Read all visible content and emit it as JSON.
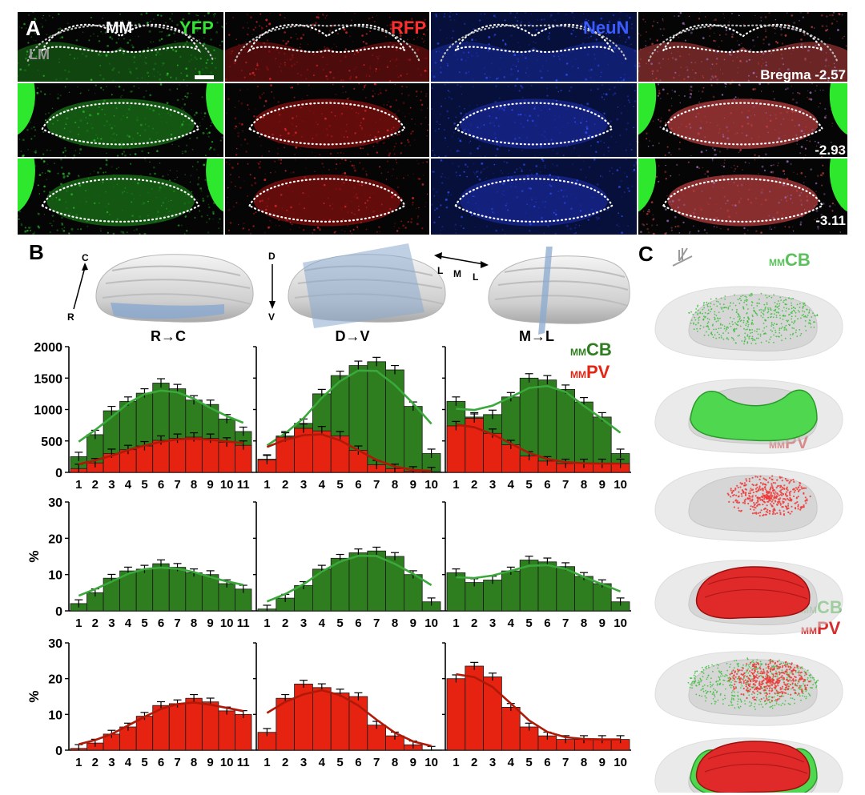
{
  "panel_a": {
    "letter": "A",
    "stain_labels": [
      "YFP",
      "RFP",
      "NeuN"
    ],
    "region_labels": {
      "mm": "MM",
      "lm": "LM"
    },
    "bregma": [
      "Bregma -2.57",
      "-2.93",
      "-3.11"
    ]
  },
  "panel_b": {
    "letter": "B",
    "orientation": {
      "rc": {
        "top": "C",
        "bottom": "R"
      },
      "dv": {
        "top": "D",
        "bottom": "V"
      },
      "ml": {
        "left": "L",
        "middle": "M",
        "right": "L"
      }
    },
    "column_titles": [
      "R→C",
      "D→V",
      "M→L"
    ],
    "legend": {
      "cb": {
        "prefix": "MM",
        "name": "CB",
        "color": "#2e7d1e"
      },
      "pv": {
        "prefix": "MM",
        "name": "PV",
        "color": "#e52310"
      }
    },
    "row_ylabels": [
      "",
      "%",
      "%"
    ]
  },
  "panel_c": {
    "letter": "C",
    "labels": {
      "cb": {
        "prefix": "MM",
        "name": "CB"
      },
      "pv": {
        "prefix": "MM",
        "name": "PV"
      },
      "both_cb": {
        "prefix": "MM",
        "name": "CB"
      },
      "both_pv": {
        "prefix": "MM",
        "name": "PV"
      }
    }
  },
  "chart_data": [
    {
      "type": "bar",
      "id": "counts-rc",
      "x": [
        "1",
        "2",
        "3",
        "4",
        "5",
        "6",
        "7",
        "8",
        "9",
        "10",
        "11"
      ],
      "ylim": [
        0,
        2000
      ],
      "yticks": [
        0,
        500,
        1000,
        1500,
        2000
      ],
      "series": [
        {
          "name": "CB",
          "values": [
            250,
            600,
            980,
            1130,
            1260,
            1420,
            1330,
            1150,
            1080,
            850,
            650
          ]
        },
        {
          "name": "PV",
          "values": [
            60,
            150,
            300,
            360,
            420,
            510,
            540,
            560,
            540,
            480,
            430
          ]
        }
      ]
    },
    {
      "type": "bar",
      "id": "counts-dv",
      "x": [
        "1",
        "2",
        "3",
        "4",
        "5",
        "6",
        "7",
        "8",
        "9",
        "10"
      ],
      "ylim": [
        0,
        2000
      ],
      "yticks": [
        0,
        500,
        1000,
        1500,
        2000
      ],
      "series": [
        {
          "name": "CB",
          "values": [
            210,
            580,
            780,
            1250,
            1540,
            1700,
            1760,
            1630,
            1050,
            300
          ]
        },
        {
          "name": "PV",
          "values": [
            200,
            560,
            700,
            660,
            580,
            350,
            120,
            60,
            20,
            10
          ]
        }
      ]
    },
    {
      "type": "bar",
      "id": "counts-ml",
      "x": [
        "1",
        "2",
        "3",
        "4",
        "5",
        "6",
        "7",
        "8",
        "9",
        "10"
      ],
      "ylim": [
        0,
        2000
      ],
      "yticks": [
        0,
        500,
        1000,
        1500,
        2000
      ],
      "series": [
        {
          "name": "CB",
          "values": [
            1130,
            880,
            920,
            1200,
            1500,
            1470,
            1320,
            1120,
            880,
            300
          ]
        },
        {
          "name": "PV",
          "values": [
            740,
            860,
            620,
            440,
            260,
            180,
            140,
            140,
            140,
            140
          ]
        }
      ]
    },
    {
      "type": "bar",
      "id": "cb-pct-rc",
      "x": [
        "1",
        "2",
        "3",
        "4",
        "5",
        "6",
        "7",
        "8",
        "9",
        "10",
        "11"
      ],
      "ylim": [
        0,
        30
      ],
      "yticks": [
        0,
        10,
        20,
        30
      ],
      "series": [
        {
          "name": "CB",
          "values": [
            2,
            5,
            9,
            11,
            11.5,
            13,
            12,
            10.5,
            10,
            7.5,
            6
          ]
        }
      ]
    },
    {
      "type": "bar",
      "id": "cb-pct-dv",
      "x": [
        "1",
        "2",
        "3",
        "4",
        "5",
        "6",
        "7",
        "8",
        "9",
        "10"
      ],
      "ylim": [
        0,
        30
      ],
      "yticks": [
        0,
        10,
        20,
        30
      ],
      "series": [
        {
          "name": "CB",
          "values": [
            0.5,
            3.5,
            7,
            11.5,
            14.5,
            16,
            16.5,
            15,
            10,
            2.5
          ]
        }
      ]
    },
    {
      "type": "bar",
      "id": "cb-pct-ml",
      "x": [
        "1",
        "2",
        "3",
        "4",
        "5",
        "6",
        "7",
        "8",
        "9",
        "10"
      ],
      "ylim": [
        0,
        30
      ],
      "yticks": [
        0,
        10,
        20,
        30
      ],
      "series": [
        {
          "name": "CB",
          "values": [
            10.5,
            7.8,
            8.5,
            11,
            14,
            13.5,
            12.2,
            9.5,
            7.5,
            2.5
          ]
        }
      ]
    },
    {
      "type": "bar",
      "id": "pv-pct-rc",
      "x": [
        "1",
        "2",
        "3",
        "4",
        "5",
        "6",
        "7",
        "8",
        "9",
        "10",
        "11"
      ],
      "ylim": [
        0,
        30
      ],
      "yticks": [
        0,
        10,
        20,
        30
      ],
      "series": [
        {
          "name": "PV",
          "values": [
            0.5,
            2,
            4.5,
            6.5,
            9.5,
            12.5,
            13,
            14.5,
            13.5,
            11,
            10
          ]
        }
      ]
    },
    {
      "type": "bar",
      "id": "pv-pct-dv",
      "x": [
        "1",
        "2",
        "3",
        "4",
        "5",
        "6",
        "7",
        "8",
        "9",
        "10"
      ],
      "ylim": [
        0,
        30
      ],
      "yticks": [
        0,
        10,
        20,
        30
      ],
      "series": [
        {
          "name": "PV",
          "values": [
            5,
            14.5,
            18.5,
            17.5,
            16,
            15,
            7,
            4,
            1.5,
            0
          ]
        }
      ]
    },
    {
      "type": "bar",
      "id": "pv-pct-ml",
      "x": [
        "1",
        "2",
        "3",
        "4",
        "5",
        "6",
        "7",
        "8",
        "9",
        "10"
      ],
      "ylim": [
        0,
        30
      ],
      "yticks": [
        0,
        10,
        20,
        30
      ],
      "series": [
        {
          "name": "PV",
          "values": [
            20,
            23.5,
            20.5,
            12,
            6.5,
            4,
            3,
            3,
            3,
            3
          ]
        }
      ]
    }
  ]
}
